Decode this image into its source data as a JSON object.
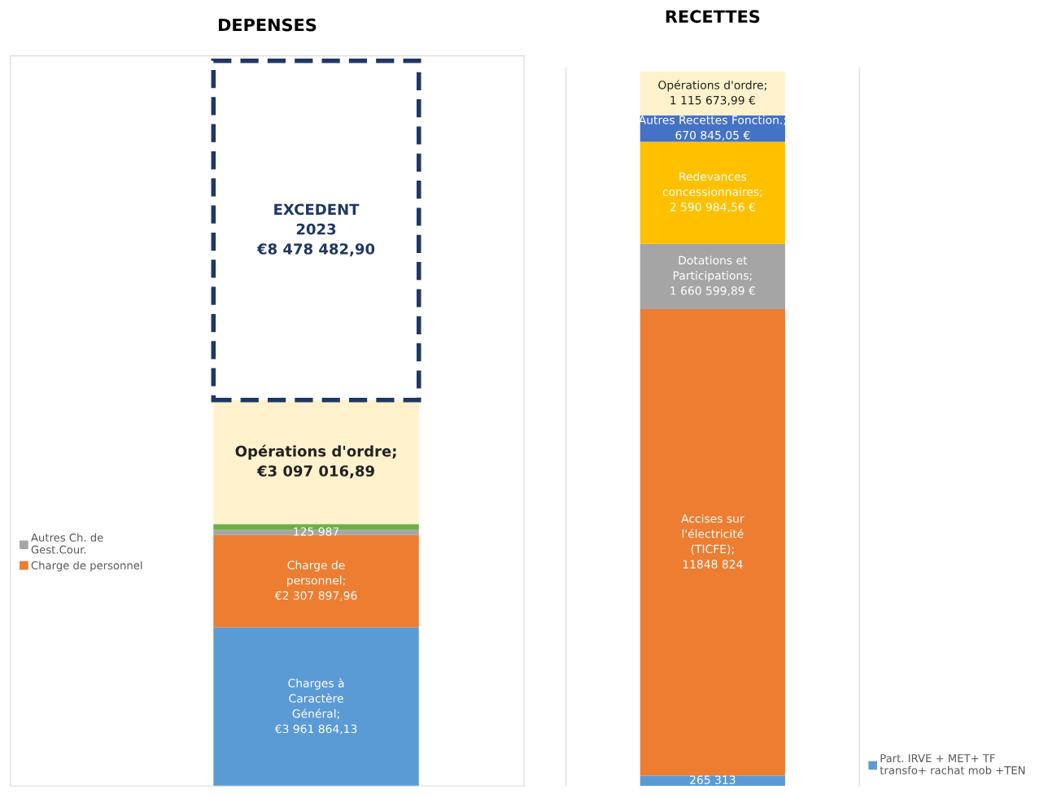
{
  "chart_data": [
    {
      "type": "bar",
      "title": "DEPENSES",
      "stacked": true,
      "categories": [
        null
      ],
      "legend": "left",
      "series": [
        {
          "color": "#5b9bd5",
          "values": [
            3961864.13
          ],
          "value_labels": [
            "Charges à\nCaractère\nGénéral;\n€3 961 864,13"
          ]
        },
        {
          "name": "Charge de personnel",
          "color": "#ed7d31",
          "values": [
            2307897.96
          ],
          "value_labels": [
            "Charge de\npersonnel;\n€2 307 897,96"
          ]
        },
        {
          "name": "Autres Ch. de\nGest.Cour.",
          "color": "#a5a5a5",
          "values": [
            125987
          ],
          "value_labels": [
            "125 987"
          ]
        },
        {
          "color": "#70ad47",
          "values": [
            150000
          ],
          "value_labels": [
            null
          ]
        },
        {
          "color": "#fff2cc",
          "values": [
            3097016.89
          ],
          "value_labels": [
            "Opérations d'ordre;\n€3 097 016,89"
          ]
        },
        {
          "color": "#ffffff",
          "line_style": "dashed",
          "values": [
            8478482.9
          ],
          "value_labels": [
            "EXCEDENT\n2023\n€8 478 482,90"
          ]
        }
      ]
    },
    {
      "type": "bar",
      "title": "RECETTES",
      "stacked": true,
      "categories": [
        null
      ],
      "legend": "bottom right",
      "series": [
        {
          "name": "Part. IRVE + MET+ TF\ntransfo+ rachat mob +TEN",
          "color": "#5b9bd5",
          "values": [
            265313
          ],
          "value_labels": [
            "265 313"
          ]
        },
        {
          "color": "#ed7d31",
          "values": [
            11848824
          ],
          "value_labels": [
            "Accises sur\nl'électricité\n(TICFE);\n11848 824"
          ]
        },
        {
          "color": "#a5a5a5",
          "values": [
            1660599.89
          ],
          "value_labels": [
            "Dotations et\nParticipations;\n1 660 599,89 €"
          ]
        },
        {
          "color": "#ffc000",
          "values": [
            2590984.56
          ],
          "value_labels": [
            "Redevances\nconcessionnaires;\n2 590 984,56 €"
          ]
        },
        {
          "color": "#4472c4",
          "values": [
            670845.05
          ],
          "value_labels": [
            "Autres Recettes Fonction.;\n670 845,05 €"
          ]
        },
        {
          "color": "#fff2cc",
          "values": [
            1115673.99
          ],
          "value_labels": [
            "Opérations d'ordre;\n1 115 673,99 €"
          ]
        }
      ]
    }
  ]
}
